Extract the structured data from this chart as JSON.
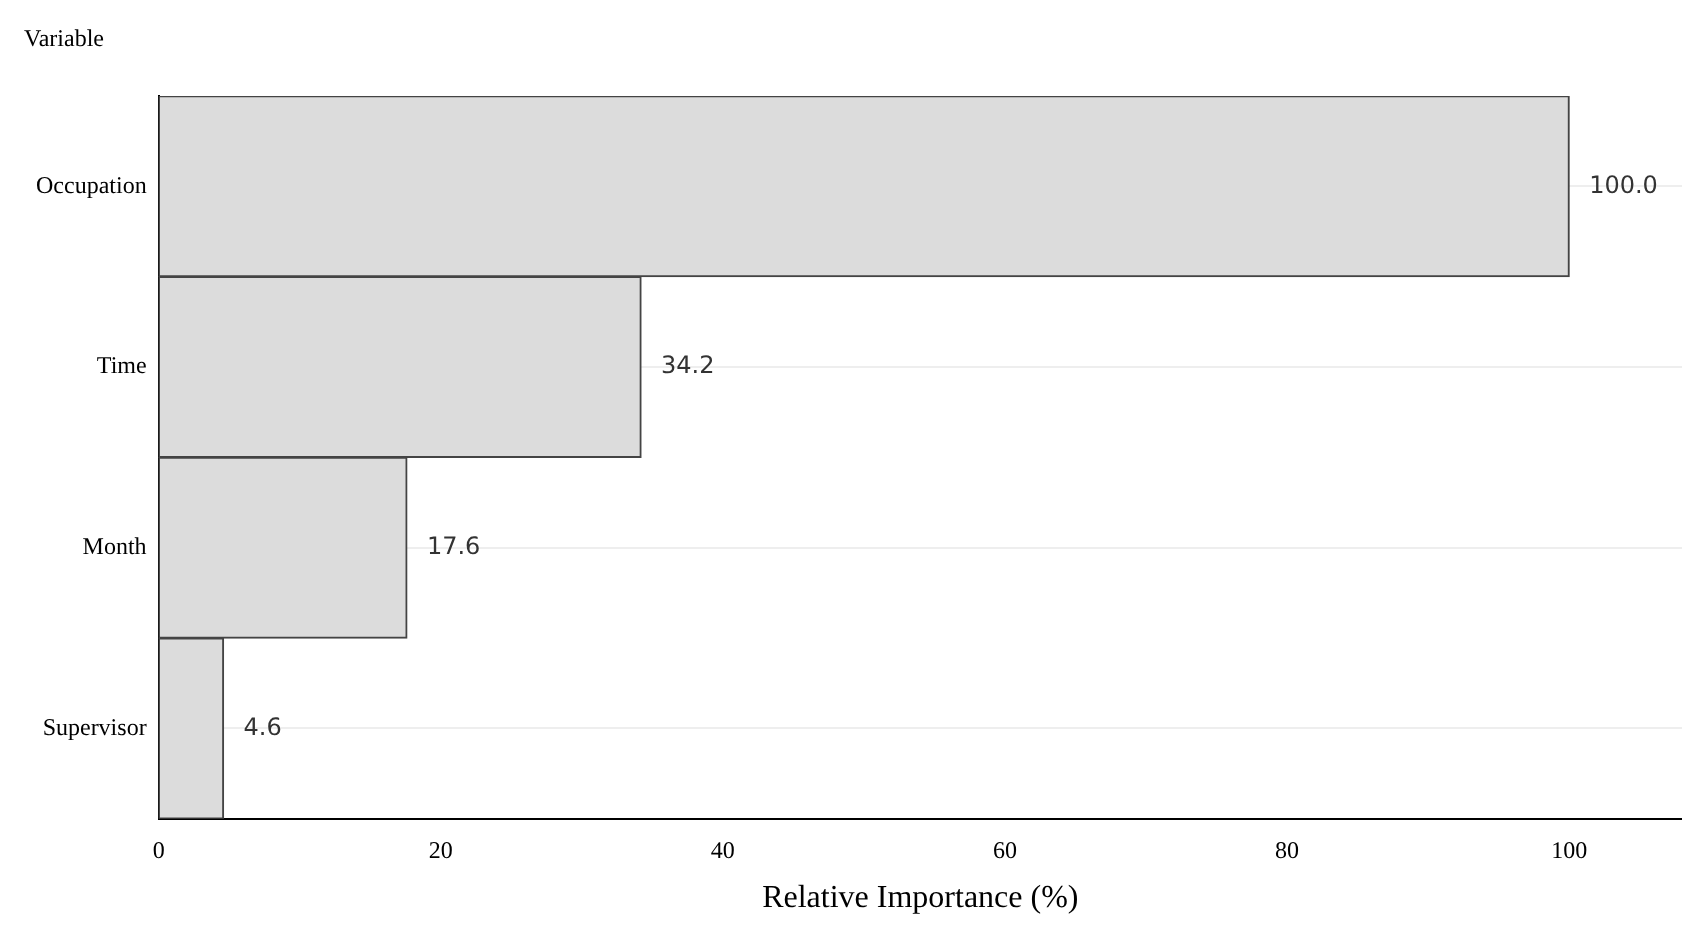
{
  "chart_data": {
    "type": "bar",
    "orientation": "horizontal",
    "xlabel": "Relative Importance (%)",
    "ylabel": "Variable",
    "categories": [
      "Occupation",
      "Time",
      "Month",
      "Supervisor"
    ],
    "values": [
      100.0,
      34.2,
      17.6,
      4.6
    ],
    "value_labels": [
      "100.0",
      "34.2",
      "17.6",
      "4.6"
    ],
    "color": "#dcdcdc",
    "xlim": [
      0,
      108
    ],
    "xticks": [
      0,
      20,
      40,
      60,
      80,
      100
    ],
    "grid": "y",
    "legend": false
  }
}
